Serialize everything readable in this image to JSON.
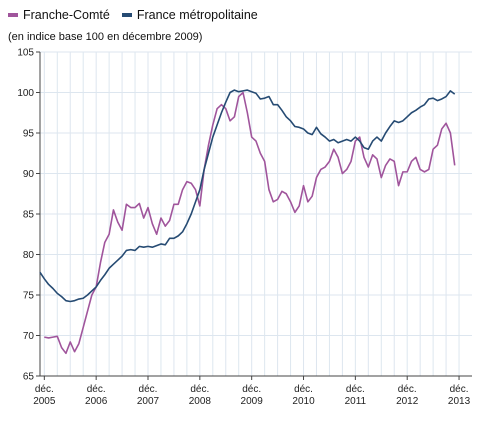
{
  "chart_data": {
    "type": "line",
    "title": "",
    "subtitle": "(en indice base 100 en décembre 2009)",
    "xlabel": "",
    "ylabel": "",
    "ylim": [
      65,
      105
    ],
    "yticks": [
      65,
      70,
      75,
      80,
      85,
      90,
      95,
      100,
      105
    ],
    "xticks": [
      {
        "x": 0,
        "line1": "déc.",
        "line2": "2005"
      },
      {
        "x": 12,
        "line1": "déc.",
        "line2": "2006"
      },
      {
        "x": 24,
        "line1": "déc.",
        "line2": "2007"
      },
      {
        "x": 36,
        "line1": "déc.",
        "line2": "2008"
      },
      {
        "x": 48,
        "line1": "déc.",
        "line2": "2009"
      },
      {
        "x": 60,
        "line1": "déc.",
        "line2": "2010"
      },
      {
        "x": 72,
        "line1": "déc.",
        "line2": "2011"
      },
      {
        "x": 84,
        "line1": "déc.",
        "line2": "2012"
      },
      {
        "x": 96,
        "line1": "déc.",
        "line2": "2013"
      }
    ],
    "x_unit": "months since déc. 2005",
    "grid": true,
    "legend_position": "top-left",
    "series": [
      {
        "name": "Franche-Comté",
        "color": "#a0559c",
        "points": [
          [
            0,
            69.8
          ],
          [
            1,
            69.7
          ],
          [
            2,
            69.8
          ],
          [
            3,
            69.9
          ],
          [
            4,
            68.5
          ],
          [
            5,
            67.8
          ],
          [
            6,
            69.2
          ],
          [
            7,
            68.0
          ],
          [
            8,
            69.0
          ],
          [
            9,
            71.0
          ],
          [
            10,
            73.0
          ],
          [
            11,
            75.0
          ],
          [
            12,
            76.0
          ],
          [
            13,
            79.0
          ],
          [
            14,
            81.5
          ],
          [
            15,
            82.5
          ],
          [
            16,
            85.5
          ],
          [
            17,
            84.0
          ],
          [
            18,
            83.0
          ],
          [
            19,
            86.2
          ],
          [
            20,
            85.8
          ],
          [
            21,
            85.8
          ],
          [
            22,
            86.3
          ],
          [
            23,
            84.5
          ],
          [
            24,
            85.8
          ],
          [
            25,
            83.8
          ],
          [
            26,
            82.5
          ],
          [
            27,
            84.5
          ],
          [
            28,
            83.5
          ],
          [
            29,
            84.2
          ],
          [
            30,
            86.2
          ],
          [
            31,
            86.2
          ],
          [
            32,
            88.0
          ],
          [
            33,
            89.0
          ],
          [
            34,
            88.8
          ],
          [
            35,
            88.0
          ],
          [
            36,
            86.0
          ],
          [
            37,
            90.5
          ],
          [
            38,
            93.5
          ],
          [
            39,
            96.0
          ],
          [
            40,
            98.0
          ],
          [
            41,
            98.5
          ],
          [
            42,
            98.0
          ],
          [
            43,
            96.5
          ],
          [
            44,
            97.0
          ],
          [
            45,
            99.5
          ],
          [
            46,
            100.0
          ],
          [
            47,
            97.5
          ],
          [
            48,
            94.5
          ],
          [
            49,
            94.0
          ],
          [
            50,
            92.5
          ],
          [
            51,
            91.5
          ],
          [
            52,
            88.0
          ],
          [
            53,
            86.5
          ],
          [
            54,
            86.8
          ],
          [
            55,
            87.8
          ],
          [
            56,
            87.5
          ],
          [
            57,
            86.5
          ],
          [
            58,
            85.2
          ],
          [
            59,
            86.0
          ],
          [
            60,
            88.5
          ],
          [
            61,
            86.5
          ],
          [
            62,
            87.2
          ],
          [
            63,
            89.5
          ],
          [
            64,
            90.5
          ],
          [
            65,
            90.8
          ],
          [
            66,
            91.5
          ],
          [
            67,
            93.0
          ],
          [
            68,
            92.0
          ],
          [
            69,
            90.0
          ],
          [
            70,
            90.5
          ],
          [
            71,
            91.5
          ],
          [
            72,
            94.0
          ],
          [
            73,
            94.5
          ],
          [
            74,
            92.0
          ],
          [
            75,
            90.8
          ],
          [
            76,
            92.3
          ],
          [
            77,
            91.8
          ],
          [
            78,
            89.5
          ],
          [
            79,
            91.0
          ],
          [
            80,
            91.8
          ],
          [
            81,
            91.5
          ],
          [
            82,
            88.5
          ],
          [
            83,
            90.2
          ],
          [
            84,
            90.2
          ],
          [
            85,
            91.5
          ],
          [
            86,
            92.0
          ],
          [
            87,
            90.5
          ],
          [
            88,
            90.2
          ],
          [
            89,
            90.5
          ],
          [
            90,
            93.0
          ],
          [
            91,
            93.5
          ],
          [
            92,
            95.5
          ],
          [
            93,
            96.2
          ],
          [
            94,
            95.0
          ],
          [
            95,
            91.0
          ]
        ]
      },
      {
        "name": "France métropolitaine",
        "color": "#264b73",
        "points": [
          [
            -1,
            77.8
          ],
          [
            0,
            77.0
          ],
          [
            1,
            76.3
          ],
          [
            2,
            75.8
          ],
          [
            3,
            75.2
          ],
          [
            4,
            74.8
          ],
          [
            5,
            74.3
          ],
          [
            6,
            74.2
          ],
          [
            7,
            74.3
          ],
          [
            8,
            74.5
          ],
          [
            9,
            74.6
          ],
          [
            10,
            75.0
          ],
          [
            11,
            75.5
          ],
          [
            12,
            76.0
          ],
          [
            13,
            76.8
          ],
          [
            14,
            77.5
          ],
          [
            15,
            78.3
          ],
          [
            16,
            78.8
          ],
          [
            17,
            79.3
          ],
          [
            18,
            79.8
          ],
          [
            19,
            80.5
          ],
          [
            20,
            80.6
          ],
          [
            21,
            80.5
          ],
          [
            22,
            81.0
          ],
          [
            23,
            80.9
          ],
          [
            24,
            81.0
          ],
          [
            25,
            80.9
          ],
          [
            26,
            81.1
          ],
          [
            27,
            81.3
          ],
          [
            28,
            81.2
          ],
          [
            29,
            82.0
          ],
          [
            30,
            82.0
          ],
          [
            31,
            82.3
          ],
          [
            32,
            82.8
          ],
          [
            33,
            83.8
          ],
          [
            34,
            85.0
          ],
          [
            35,
            86.5
          ],
          [
            36,
            88.0
          ],
          [
            37,
            90.5
          ],
          [
            38,
            92.5
          ],
          [
            39,
            94.5
          ],
          [
            40,
            96.0
          ],
          [
            41,
            97.5
          ],
          [
            42,
            98.8
          ],
          [
            43,
            100.0
          ],
          [
            44,
            100.3
          ],
          [
            45,
            100.1
          ],
          [
            46,
            100.2
          ],
          [
            47,
            100.3
          ],
          [
            48,
            100.1
          ],
          [
            49,
            99.9
          ],
          [
            50,
            99.2
          ],
          [
            51,
            99.3
          ],
          [
            52,
            99.5
          ],
          [
            53,
            98.5
          ],
          [
            54,
            98.5
          ],
          [
            55,
            97.8
          ],
          [
            56,
            97.0
          ],
          [
            57,
            96.5
          ],
          [
            58,
            95.8
          ],
          [
            59,
            95.7
          ],
          [
            60,
            95.5
          ],
          [
            61,
            95.0
          ],
          [
            62,
            94.8
          ],
          [
            63,
            95.7
          ],
          [
            64,
            94.9
          ],
          [
            65,
            94.5
          ],
          [
            66,
            94.0
          ],
          [
            67,
            94.2
          ],
          [
            68,
            93.8
          ],
          [
            69,
            94.0
          ],
          [
            70,
            94.2
          ],
          [
            71,
            94.0
          ],
          [
            72,
            94.5
          ],
          [
            73,
            94.0
          ],
          [
            74,
            93.2
          ],
          [
            75,
            93.0
          ],
          [
            76,
            94.0
          ],
          [
            77,
            94.5
          ],
          [
            78,
            94.0
          ],
          [
            79,
            95.0
          ],
          [
            80,
            95.8
          ],
          [
            81,
            96.5
          ],
          [
            82,
            96.3
          ],
          [
            83,
            96.5
          ],
          [
            84,
            97.0
          ],
          [
            85,
            97.5
          ],
          [
            86,
            97.8
          ],
          [
            87,
            98.2
          ],
          [
            88,
            98.5
          ],
          [
            89,
            99.2
          ],
          [
            90,
            99.3
          ],
          [
            91,
            99.0
          ],
          [
            92,
            99.2
          ],
          [
            93,
            99.5
          ],
          [
            94,
            100.2
          ],
          [
            95,
            99.8
          ]
        ]
      }
    ]
  }
}
